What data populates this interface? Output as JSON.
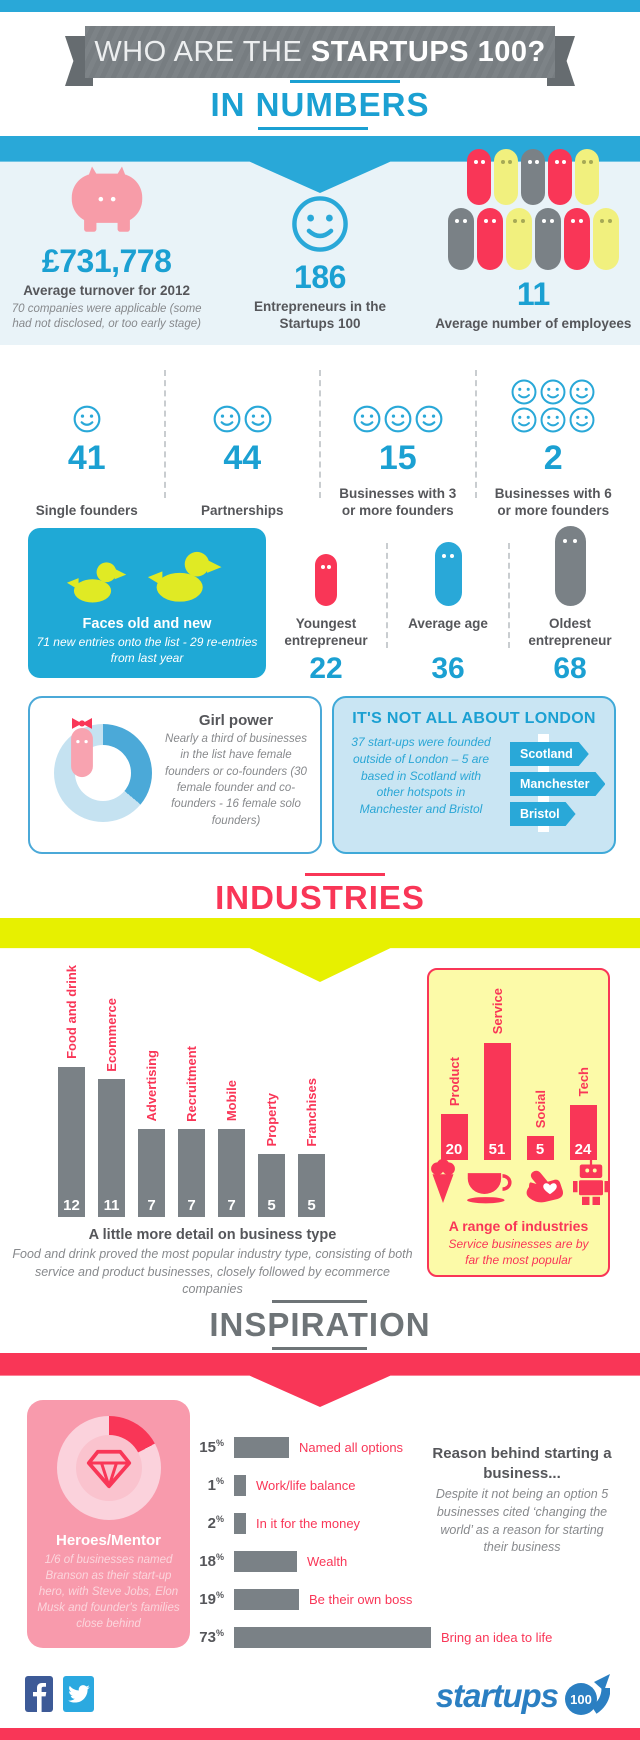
{
  "header": {
    "title_regular": "WHO ARE THE ",
    "title_bold": "STARTUPS 100?"
  },
  "section_titles": {
    "numbers": "IN NUMBERS",
    "industries": "INDUSTRIES",
    "inspiration": "INSPIRATION"
  },
  "colors": {
    "cyan": "#29A8D8",
    "cyan_text": "#1BA0D2",
    "pink": "#F93657",
    "yellow_band": "#E7F000",
    "gray": "#7A8186"
  },
  "numbers": {
    "turnover": {
      "value": "£731,778",
      "label": "Average turnover for 2012",
      "note": "70 companies were applicable (some had not disclosed, or too early stage)"
    },
    "entrepreneurs": {
      "value": "186",
      "label": "Entrepreneurs in the Startups 100"
    },
    "employees": {
      "value": "11",
      "label": "Average number of employees",
      "pill_rows": [
        [
          "red",
          "yellow",
          "gray",
          "red",
          "yellow"
        ],
        [
          "gray",
          "red",
          "yellow",
          "gray",
          "red",
          "yellow"
        ]
      ]
    }
  },
  "founders": [
    {
      "value": "41",
      "label": "Single founders",
      "faces": 1
    },
    {
      "value": "44",
      "label": "Partnerships",
      "faces": 2
    },
    {
      "value": "15",
      "label": "Businesses with 3 or more founders",
      "faces": 3
    },
    {
      "value": "2",
      "label": "Businesses with 6 or more founders",
      "faces": 6
    }
  ],
  "faces_box": {
    "title": "Faces old and new",
    "note": "71 new entries onto the list - 29 re-entries from last year"
  },
  "ages": [
    {
      "label": "Youngest entrepreneur",
      "value": "22",
      "color": "#F93657"
    },
    {
      "label": "Average age",
      "value": "36",
      "color": "#29A8D8"
    },
    {
      "label": "Oldest entrepreneur",
      "value": "68",
      "color": "#7A8186"
    }
  ],
  "girl_power": {
    "title": "Girl power",
    "note": "Nearly a third of businesses in the list have female founders or co-founders (30 female founder and co-founders - 16 female solo founders)"
  },
  "london": {
    "title": "IT'S NOT ALL ABOUT LONDON",
    "note": "37 start-ups were founded outside of London – 5 are based in Scotland with other hotspots in Manchester and Bristol",
    "places": [
      "Scotland",
      "Manchester",
      "Bristol"
    ]
  },
  "chart_data": [
    {
      "type": "bar",
      "title": "A little more detail on business type",
      "note": "Food and drink proved the most popular industry type, consisting of both service and product businesses, closely followed by ecommerce companies",
      "categories": [
        "Food and drink",
        "Ecommerce",
        "Advertising",
        "Recruitment",
        "Mobile",
        "Property",
        "Franchises"
      ],
      "values": [
        12,
        11,
        7,
        7,
        7,
        5,
        5
      ],
      "bar_color": "#7A8186",
      "label_color": "#F93657",
      "value_labels": "inside-bottom",
      "grid": false
    },
    {
      "type": "bar",
      "title": "A range of industries",
      "subtitle": "Service businesses are by far the most popular",
      "categories": [
        "Product",
        "Service",
        "Social",
        "Tech"
      ],
      "values": [
        20,
        51,
        5,
        24
      ],
      "icons": [
        "ice-cream",
        "coffee-cup",
        "hand-heart",
        "robot"
      ],
      "bar_color": "#F93657",
      "value_labels": "inside-bottom",
      "grid": false
    },
    {
      "type": "bar-horizontal",
      "title": "Reason behind starting a business...",
      "note": "Despite it not being an option 5 businesses cited ‘changing the world’ as a reason for starting their business",
      "categories": [
        "Named all options",
        "Work/life balance",
        "In it for the money",
        "Wealth",
        "Be their own boss",
        "Bring an idea to life"
      ],
      "values": [
        15,
        1,
        2,
        18,
        19,
        73
      ],
      "unit": "%",
      "bar_color": "#7A8186",
      "label_color": "#F93657",
      "grid": false
    }
  ],
  "heroes": {
    "title": "Heroes/Mentor",
    "note": "1/6 of businesses named Branson as their start-up hero, with Steve Jobs, Elon Musk and founder's families close behind"
  },
  "footer": {
    "logo_text": "startups",
    "logo_badge": "100"
  }
}
